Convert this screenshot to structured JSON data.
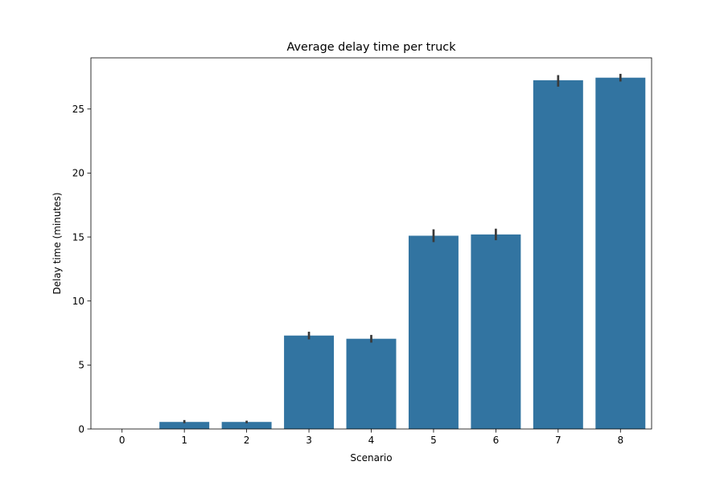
{
  "chart_data": {
    "type": "bar",
    "title": "Average delay time per truck",
    "xlabel": "Scenario",
    "ylabel": "Delay time (minutes)",
    "categories": [
      "0",
      "1",
      "2",
      "3",
      "4",
      "5",
      "6",
      "7",
      "8"
    ],
    "values": [
      0.0,
      0.55,
      0.55,
      7.3,
      7.05,
      15.1,
      15.2,
      27.25,
      27.45
    ],
    "error_low": [
      0.0,
      0.45,
      0.45,
      7.0,
      6.75,
      14.6,
      14.75,
      26.75,
      27.15
    ],
    "error_high": [
      0.0,
      0.7,
      0.65,
      7.6,
      7.35,
      15.6,
      15.65,
      27.65,
      27.75
    ],
    "ylim": [
      0,
      29
    ],
    "yticks": [
      0,
      5,
      10,
      15,
      20,
      25
    ],
    "grid": false,
    "bar_color": "#3274a1",
    "error_color": "#3a3a3a"
  }
}
